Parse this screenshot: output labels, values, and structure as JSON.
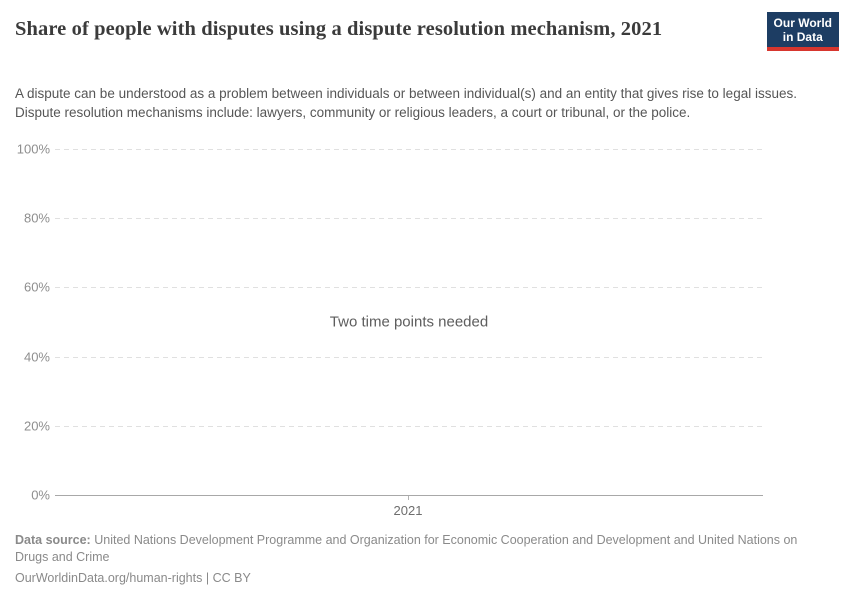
{
  "header": {
    "title": "Share of people with disputes using a dispute resolution mechanism, 2021",
    "subtitle": "A dispute can be understood as a problem between individuals or between individual(s) and an entity that gives rise to legal issues. Dispute resolution mechanisms include: lawyers, community or religious leaders, a court or tribunal, or the police.",
    "logo": {
      "line1": "Our World",
      "line2": "in Data"
    }
  },
  "chart_data": {
    "type": "line",
    "title": "Share of people with disputes using a dispute resolution mechanism, 2021",
    "note": "Two time points needed",
    "series": [],
    "x": [
      2021
    ],
    "xticks": [
      "2021"
    ],
    "ylim": [
      0,
      100
    ],
    "yticks": [
      0,
      20,
      40,
      60,
      80,
      100
    ],
    "ytick_suffix": "%",
    "grid": "dashed horizontal",
    "legend_position": "none"
  },
  "footer": {
    "source_label": "Data source:",
    "source_text": "United Nations Development Programme and Organization for Economic Cooperation and Development and United Nations on Drugs and Crime",
    "origin_url": "OurWorldinData.org/human-rights",
    "separator": "|",
    "license": "CC BY"
  },
  "colors": {
    "logo_background": "#1d3d63",
    "logo_stripe": "#d7362e",
    "title_text": "#3b3b3b",
    "subtitle_text": "#565656",
    "tick_text": "#8e8e8e",
    "gridline": "#e0e0e0",
    "axis_line": "#a8a8a8",
    "note_text": "#5d5d5d",
    "footer_text": "#8a8a8a"
  }
}
